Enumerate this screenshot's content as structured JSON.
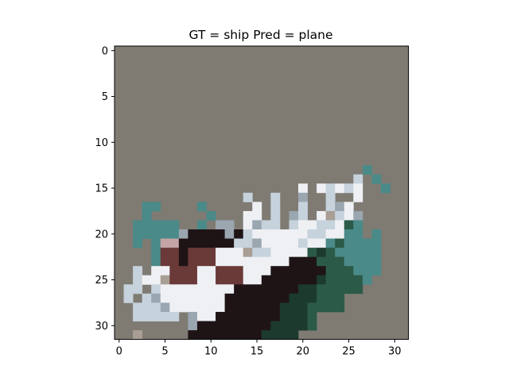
{
  "chart_data": {
    "type": "heatmap",
    "title": "GT = ship Pred = plane",
    "xlabel": "",
    "ylabel": "",
    "xlim": [
      -0.5,
      31.5
    ],
    "ylim": [
      31.5,
      -0.5
    ],
    "x_ticks": [
      0,
      5,
      10,
      15,
      20,
      25,
      30
    ],
    "y_ticks": [
      0,
      5,
      10,
      15,
      20,
      25,
      30
    ],
    "x_tick_labels": [
      "0",
      "5",
      "10",
      "15",
      "20",
      "25",
      "30"
    ],
    "y_tick_labels": [
      "0",
      "5",
      "10",
      "15",
      "20",
      "25",
      "30"
    ],
    "grid": false,
    "image_size": [
      32,
      32
    ],
    "background_color": "#7f7b73",
    "palette": {
      "T": "#4a8a88",
      "G": "#2c5a48",
      "D": "#1c3a2e",
      "W": "#eef0f4",
      "L": "#c6d2dc",
      "M": "#9aa6b0",
      "K": "#1e1416",
      "R": "#6a3a38",
      "P": "#c4a4a4",
      "S": "#a89e94"
    },
    "pixels": [
      "................................",
      "................................",
      "................................",
      "................................",
      "................................",
      "................................",
      "................................",
      "................................",
      "................................",
      "................................",
      "................................",
      "................................",
      "................................",
      "...........................T....",
      "..........................L.T...",
      "....................W.WLWLW..T..",
      "..............L..L..M..L..W.....",
      "...TT....T.....W.L..L..LMW......",
      "...T......T...WW.L.ML.WSLWM.....",
      "..TTTTT..T.MM.WMLL.LWWLLWGT.....",
      "..TTTTTMKKKKMKLWWWWWWLLWWTT.T...",
      "..T.TPPKKKKKKLLMWWWWLWWTGTTTT...",
      "....TRRKRRRWWWSLLWWWWGDGTTTTT...",
      "....TRRKRRRWWWWWWWWKKKGGGTTTT...",
      "..L.WWRRRWWRRRWWWKKKKKKGGGTTT...",
      "..LWWSRRRWWRRRWWKKKKKKDGGGGT....",
      ".LL.LWWWWWWWWKKKKKKKDDGGGGG.....",
      ".L.LMWWWWWWWKKKKKKKDDDGGG.......",
      "..LLLMWWWWWWKKKKKKDDDGGGG.......",
      "..LLLLL.MWWKKKKKKKDDDG..........",
      "........MKKKKKKKKDDDDG..........",
      "..S.....KKKKKKKKDDDD............"
    ]
  }
}
